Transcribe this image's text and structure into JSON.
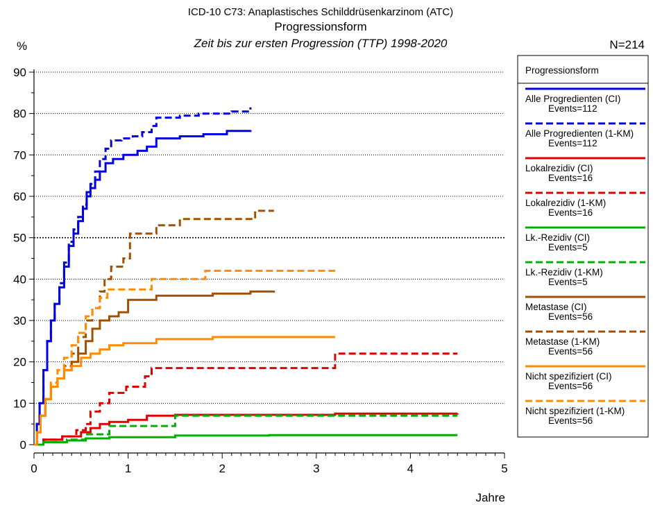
{
  "header": {
    "line1": "ICD-10 C73: Anaplastisches Schilddrüsenkarzinom (ATC)",
    "line2": "Progressionsform",
    "line3": "Zeit bis zur ersten Progression (TTP) 1998-2020",
    "y_unit": "%",
    "n_label": "N=214"
  },
  "legend": {
    "title": "Progressionsform"
  },
  "chart_data": {
    "type": "line",
    "title": "Progressionsform",
    "xlabel": "Jahre",
    "ylabel": "%",
    "xlim": [
      0,
      5
    ],
    "ylim": [
      0,
      90
    ],
    "x_ticks": [
      "0",
      "1",
      "2",
      "3",
      "4",
      "5"
    ],
    "y_ticks": [
      "0",
      "10",
      "20",
      "30",
      "40",
      "50",
      "60",
      "70",
      "80",
      "90"
    ],
    "grid": "horizontal dotted",
    "legend_position": "right",
    "series": [
      {
        "name": "Alle Progredienten (CI)",
        "events": "Events=112",
        "color": "#0000e0",
        "dash": false,
        "points": [
          [
            0,
            0
          ],
          [
            0.03,
            5
          ],
          [
            0.06,
            10
          ],
          [
            0.1,
            18
          ],
          [
            0.14,
            25
          ],
          [
            0.18,
            30
          ],
          [
            0.22,
            34
          ],
          [
            0.27,
            38
          ],
          [
            0.32,
            43
          ],
          [
            0.37,
            48
          ],
          [
            0.42,
            51
          ],
          [
            0.47,
            54
          ],
          [
            0.52,
            57
          ],
          [
            0.56,
            60
          ],
          [
            0.6,
            62
          ],
          [
            0.65,
            64
          ],
          [
            0.7,
            66
          ],
          [
            0.76,
            68
          ],
          [
            0.84,
            69
          ],
          [
            0.95,
            70
          ],
          [
            1.1,
            71
          ],
          [
            1.2,
            72
          ],
          [
            1.3,
            74
          ],
          [
            1.55,
            74.5
          ],
          [
            1.8,
            75
          ],
          [
            2.05,
            75.8
          ],
          [
            2.3,
            76
          ]
        ]
      },
      {
        "name": "Alle Progredienten (1-KM)",
        "events": "Events=112",
        "color": "#0000e0",
        "dash": true,
        "points": [
          [
            0,
            0
          ],
          [
            0.03,
            5
          ],
          [
            0.06,
            10
          ],
          [
            0.1,
            18
          ],
          [
            0.14,
            25
          ],
          [
            0.18,
            30
          ],
          [
            0.22,
            34
          ],
          [
            0.27,
            39
          ],
          [
            0.32,
            44
          ],
          [
            0.37,
            49
          ],
          [
            0.42,
            52
          ],
          [
            0.47,
            55
          ],
          [
            0.52,
            58
          ],
          [
            0.56,
            61
          ],
          [
            0.6,
            63
          ],
          [
            0.65,
            66
          ],
          [
            0.7,
            69
          ],
          [
            0.76,
            71.5
          ],
          [
            0.82,
            73.5
          ],
          [
            0.93,
            74
          ],
          [
            1.05,
            74.5
          ],
          [
            1.15,
            75.5
          ],
          [
            1.25,
            77
          ],
          [
            1.3,
            79
          ],
          [
            1.55,
            79.5
          ],
          [
            1.75,
            80
          ],
          [
            2.1,
            80.5
          ],
          [
            2.3,
            81.5
          ]
        ]
      },
      {
        "name": "Lokalrezidiv (CI)",
        "events": "Events=16",
        "color": "#e00000",
        "dash": false,
        "points": [
          [
            0,
            0
          ],
          [
            0.1,
            1.2
          ],
          [
            0.3,
            2
          ],
          [
            0.5,
            3
          ],
          [
            0.6,
            4
          ],
          [
            0.7,
            5
          ],
          [
            0.8,
            5.5
          ],
          [
            1.0,
            6
          ],
          [
            1.2,
            7
          ],
          [
            1.5,
            7.2
          ],
          [
            3.2,
            7.5
          ],
          [
            4.5,
            7.6
          ]
        ]
      },
      {
        "name": "Lokalrezidiv (1-KM)",
        "events": "Events=16",
        "color": "#e00000",
        "dash": true,
        "points": [
          [
            0,
            0
          ],
          [
            0.1,
            1.2
          ],
          [
            0.3,
            2
          ],
          [
            0.45,
            3.5
          ],
          [
            0.55,
            5
          ],
          [
            0.6,
            8
          ],
          [
            0.7,
            10
          ],
          [
            0.8,
            12.5
          ],
          [
            0.98,
            14
          ],
          [
            1.18,
            16.5
          ],
          [
            1.25,
            18.5
          ],
          [
            1.55,
            18.5
          ],
          [
            2.5,
            18.5
          ],
          [
            3.2,
            22
          ],
          [
            4.5,
            22
          ]
        ]
      },
      {
        "name": "Lk.-Rezidiv (CI)",
        "events": "Events=5",
        "color": "#00b000",
        "dash": false,
        "points": [
          [
            0,
            0
          ],
          [
            0.1,
            0.6
          ],
          [
            0.35,
            1
          ],
          [
            0.55,
            1.5
          ],
          [
            0.8,
            1.8
          ],
          [
            1.5,
            2.2
          ],
          [
            2.5,
            2.3
          ],
          [
            4.5,
            2.3
          ]
        ]
      },
      {
        "name": "Lk.-Rezidiv (1-KM)",
        "events": "Events=5",
        "color": "#00b000",
        "dash": true,
        "points": [
          [
            0,
            0
          ],
          [
            0.1,
            0.6
          ],
          [
            0.35,
            1.2
          ],
          [
            0.55,
            2.5
          ],
          [
            0.8,
            4.5
          ],
          [
            1.5,
            7
          ],
          [
            2.5,
            7
          ],
          [
            4.5,
            7
          ]
        ]
      },
      {
        "name": "Metastase (CI)",
        "events": "Events=56",
        "color": "#a05000",
        "dash": false,
        "points": [
          [
            0,
            0
          ],
          [
            0.03,
            3
          ],
          [
            0.07,
            7
          ],
          [
            0.12,
            11
          ],
          [
            0.18,
            14
          ],
          [
            0.25,
            16
          ],
          [
            0.32,
            18
          ],
          [
            0.4,
            20
          ],
          [
            0.47,
            22
          ],
          [
            0.55,
            25
          ],
          [
            0.62,
            28
          ],
          [
            0.7,
            30
          ],
          [
            0.8,
            31
          ],
          [
            0.9,
            32
          ],
          [
            1.0,
            35
          ],
          [
            1.3,
            36
          ],
          [
            1.9,
            36.5
          ],
          [
            2.3,
            37
          ],
          [
            2.55,
            37.2
          ]
        ]
      },
      {
        "name": "Metastase (1-KM)",
        "events": "Events=56",
        "color": "#a05000",
        "dash": true,
        "points": [
          [
            0,
            0
          ],
          [
            0.03,
            3
          ],
          [
            0.07,
            7
          ],
          [
            0.12,
            11
          ],
          [
            0.18,
            14
          ],
          [
            0.25,
            16
          ],
          [
            0.32,
            19
          ],
          [
            0.4,
            22
          ],
          [
            0.47,
            26
          ],
          [
            0.55,
            30
          ],
          [
            0.62,
            33
          ],
          [
            0.7,
            37
          ],
          [
            0.75,
            40
          ],
          [
            0.82,
            43
          ],
          [
            0.95,
            45
          ],
          [
            1.02,
            51
          ],
          [
            1.3,
            53
          ],
          [
            1.55,
            54.5
          ],
          [
            2.3,
            54.5
          ],
          [
            2.35,
            56.5
          ],
          [
            2.55,
            56.5
          ]
        ]
      },
      {
        "name": "Nicht spezifiziert (CI)",
        "events": "Events=56",
        "color": "#ff8c00",
        "dash": false,
        "points": [
          [
            0,
            0
          ],
          [
            0.03,
            3
          ],
          [
            0.07,
            7
          ],
          [
            0.12,
            11
          ],
          [
            0.18,
            14
          ],
          [
            0.25,
            16
          ],
          [
            0.32,
            18
          ],
          [
            0.4,
            19
          ],
          [
            0.5,
            21
          ],
          [
            0.6,
            22
          ],
          [
            0.7,
            23
          ],
          [
            0.8,
            24
          ],
          [
            0.95,
            24.5
          ],
          [
            1.3,
            25.5
          ],
          [
            1.9,
            26
          ],
          [
            3.2,
            26
          ]
        ]
      },
      {
        "name": "Nicht spezifiziert (1-KM)",
        "events": "Events=56",
        "color": "#ff8c00",
        "dash": true,
        "points": [
          [
            0,
            0
          ],
          [
            0.03,
            3
          ],
          [
            0.07,
            7
          ],
          [
            0.12,
            11
          ],
          [
            0.18,
            15
          ],
          [
            0.25,
            18
          ],
          [
            0.32,
            21
          ],
          [
            0.4,
            24
          ],
          [
            0.47,
            27
          ],
          [
            0.55,
            31
          ],
          [
            0.62,
            33
          ],
          [
            0.7,
            35.5
          ],
          [
            0.78,
            37.5
          ],
          [
            0.95,
            37.5
          ],
          [
            1.05,
            37.5
          ],
          [
            1.25,
            40
          ],
          [
            1.75,
            40
          ],
          [
            1.82,
            42
          ],
          [
            2.5,
            42
          ],
          [
            3.2,
            42
          ]
        ]
      }
    ]
  }
}
